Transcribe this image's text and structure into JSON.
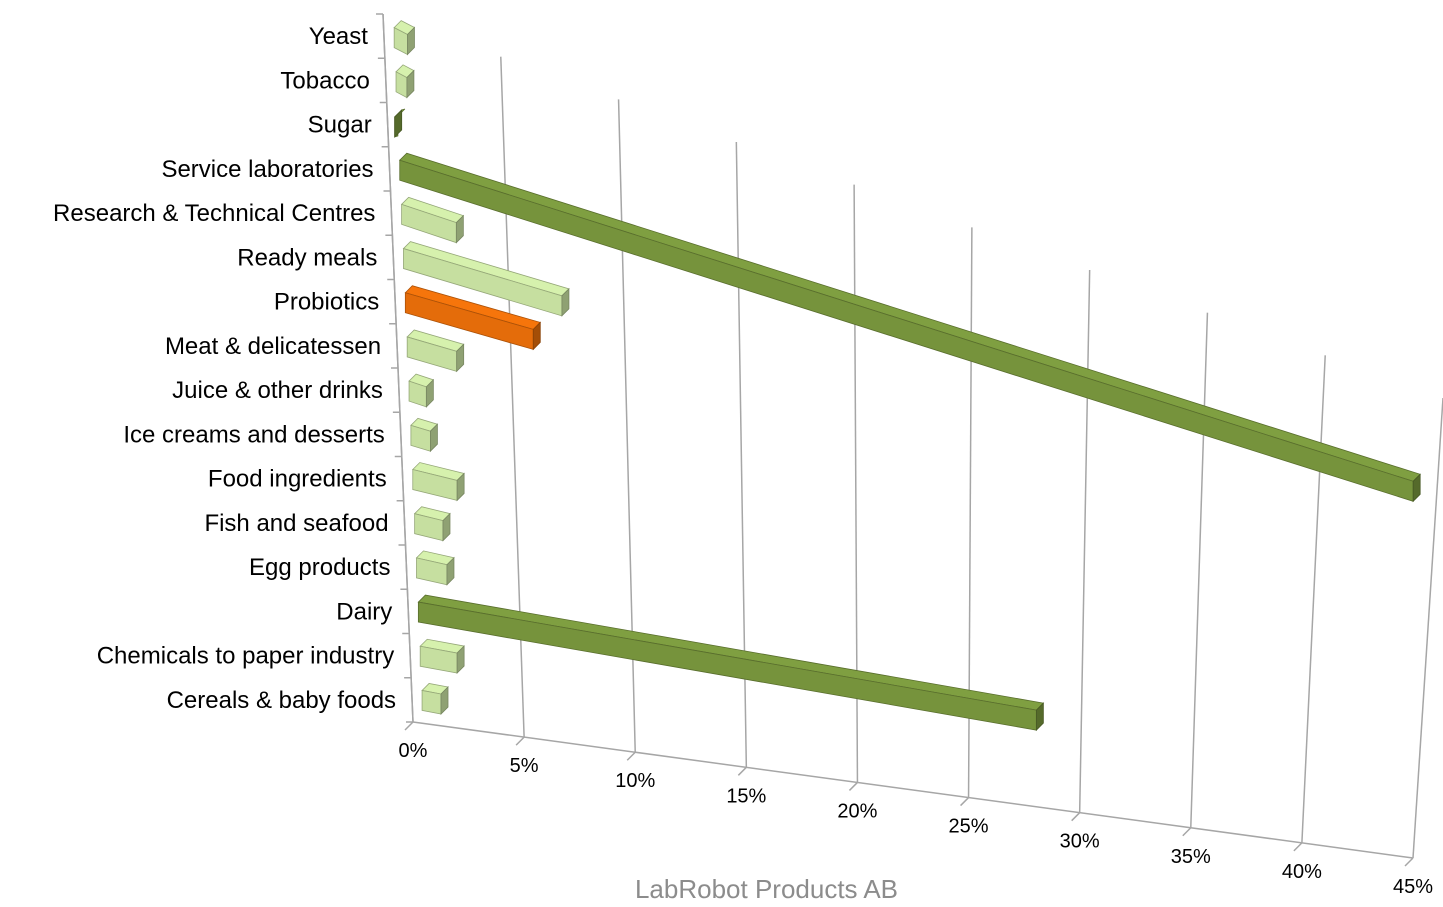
{
  "chart_data": {
    "type": "bar",
    "orientation": "horizontal",
    "style": "3d-perspective",
    "title": "",
    "xlabel": "",
    "ylabel": "",
    "xlim": [
      0,
      45
    ],
    "x_ticks": [
      "0%",
      "5%",
      "10%",
      "15%",
      "20%",
      "25%",
      "30%",
      "35%",
      "40%",
      "45%"
    ],
    "grid": true,
    "legend": "none",
    "categories": [
      "Yeast",
      "Tobacco",
      "Sugar",
      "Service laboratories",
      "Research & Technical Centres",
      "Ready meals",
      "Probiotics",
      "Meat & delicatessen",
      "Juice & other drinks",
      "Ice creams and desserts",
      "Food ingredients",
      "Fish and seafood",
      "Egg products",
      "Dairy",
      "Chemicals to paper industry",
      "Cereals & baby foods"
    ],
    "values": [
      1.0,
      0.9,
      0.3,
      44.0,
      2.8,
      7.3,
      6.0,
      2.6,
      1.2,
      1.3,
      2.4,
      1.7,
      1.8,
      28.0,
      2.1,
      1.3
    ],
    "bar_colors": [
      "#c6dfa0",
      "#c6dfa0",
      "#76933c",
      "#76933c",
      "#c6dfa0",
      "#c6dfa0",
      "#e46c0a",
      "#c6dfa0",
      "#c6dfa0",
      "#c6dfa0",
      "#c6dfa0",
      "#c6dfa0",
      "#c6dfa0",
      "#76933c",
      "#c6dfa0",
      "#c6dfa0"
    ]
  },
  "footer_text": "LabRobot Products AB"
}
